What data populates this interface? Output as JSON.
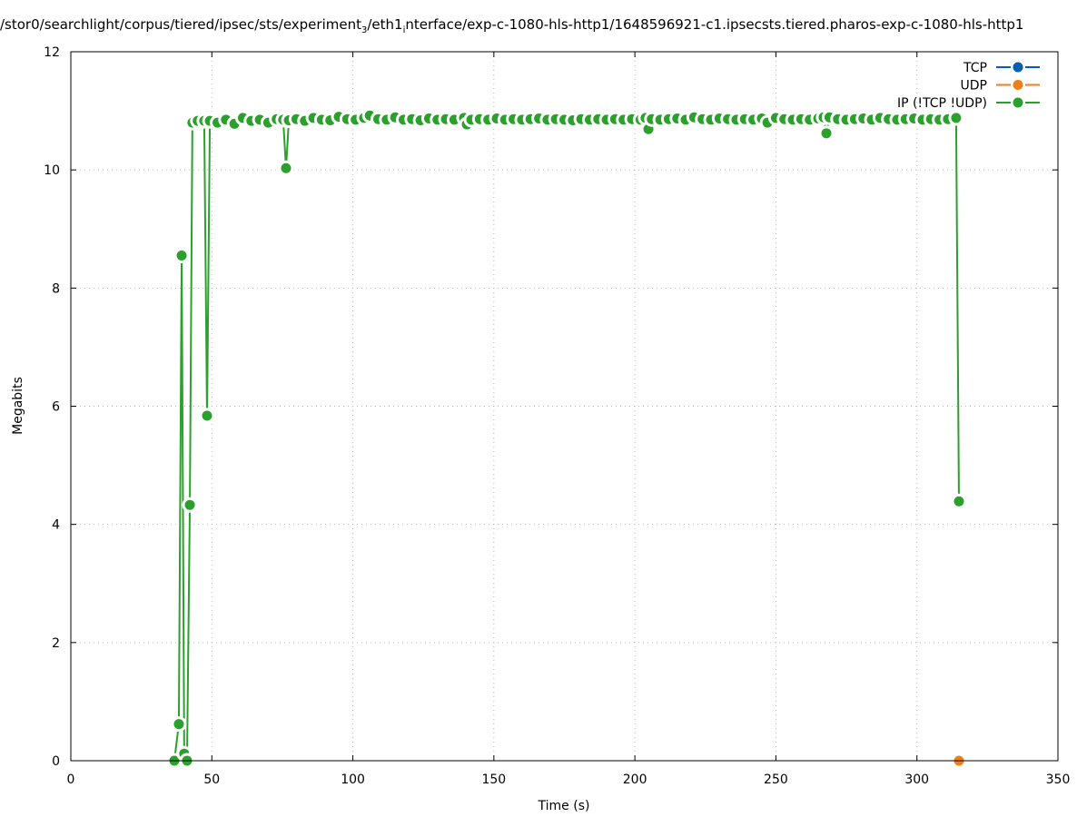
{
  "chart_data": {
    "type": "line",
    "title_parts": [
      "/stor0/searchlight/corpus/tiered/ipsec/sts/experiment",
      "3",
      "/eth1",
      "i",
      "nterface/exp-c-1080-hls-http1/1648596921-c1.ipsecsts.tiered.pharos-exp-c-1080-hls-http1"
    ],
    "xlabel": "Time (s)",
    "ylabel": "Megabits",
    "xlim": [
      0,
      350
    ],
    "ylim": [
      0,
      12
    ],
    "xticks": [
      0,
      50,
      100,
      150,
      200,
      250,
      300,
      350
    ],
    "yticks": [
      0,
      2,
      4,
      6,
      8,
      10,
      12
    ],
    "grid": true,
    "legend_position": "top-right",
    "series": [
      {
        "name": "TCP",
        "color": "#0060ad",
        "points": []
      },
      {
        "name": "UDP",
        "color": "#f07f16",
        "points": [
          [
            314.9,
            0
          ]
        ]
      },
      {
        "name": "IP (!TCP  !UDP)",
        "color": "#2ca02c",
        "points": [
          [
            36.7,
            0
          ],
          [
            38.3,
            0.62
          ],
          [
            39.3,
            8.55
          ],
          [
            40.2,
            0.12
          ],
          [
            41.2,
            0
          ],
          [
            42.2,
            4.33
          ],
          [
            43.1,
            10.8
          ],
          [
            45,
            10.83
          ],
          [
            47.3,
            10.83
          ],
          [
            48.3,
            5.84
          ],
          [
            49.3,
            10.83
          ],
          [
            52,
            10.8
          ],
          [
            55,
            10.85
          ],
          [
            58,
            10.78
          ],
          [
            61,
            10.88
          ],
          [
            64,
            10.83
          ],
          [
            67,
            10.85
          ],
          [
            70,
            10.8
          ],
          [
            73,
            10.86
          ],
          [
            75.3,
            10.85
          ],
          [
            76.3,
            10.03
          ],
          [
            77.3,
            10.84
          ],
          [
            80,
            10.86
          ],
          [
            83,
            10.83
          ],
          [
            86,
            10.88
          ],
          [
            89,
            10.85
          ],
          [
            92,
            10.84
          ],
          [
            95,
            10.9
          ],
          [
            98,
            10.86
          ],
          [
            101,
            10.85
          ],
          [
            104,
            10.88
          ],
          [
            106,
            10.92
          ],
          [
            109,
            10.86
          ],
          [
            112,
            10.85
          ],
          [
            115,
            10.89
          ],
          [
            118,
            10.85
          ],
          [
            121,
            10.86
          ],
          [
            124,
            10.84
          ],
          [
            127,
            10.87
          ],
          [
            130,
            10.85
          ],
          [
            133,
            10.86
          ],
          [
            136,
            10.85
          ],
          [
            139.4,
            10.88
          ],
          [
            140.4,
            10.77
          ],
          [
            142,
            10.85
          ],
          [
            145,
            10.86
          ],
          [
            148,
            10.85
          ],
          [
            151,
            10.87
          ],
          [
            154,
            10.85
          ],
          [
            157,
            10.86
          ],
          [
            160,
            10.85
          ],
          [
            163,
            10.86
          ],
          [
            166,
            10.87
          ],
          [
            169,
            10.85
          ],
          [
            172,
            10.86
          ],
          [
            175,
            10.85
          ],
          [
            178,
            10.84
          ],
          [
            181,
            10.86
          ],
          [
            184,
            10.85
          ],
          [
            187,
            10.86
          ],
          [
            190,
            10.85
          ],
          [
            193,
            10.86
          ],
          [
            196,
            10.85
          ],
          [
            199,
            10.86
          ],
          [
            202,
            10.85
          ],
          [
            203.8,
            10.88
          ],
          [
            204.8,
            10.69
          ],
          [
            206,
            10.86
          ],
          [
            209,
            10.85
          ],
          [
            212,
            10.86
          ],
          [
            215,
            10.87
          ],
          [
            218,
            10.85
          ],
          [
            221,
            10.89
          ],
          [
            224,
            10.86
          ],
          [
            227,
            10.85
          ],
          [
            230,
            10.87
          ],
          [
            233,
            10.86
          ],
          [
            236,
            10.85
          ],
          [
            239,
            10.86
          ],
          [
            242,
            10.85
          ],
          [
            245,
            10.87
          ],
          [
            247,
            10.8
          ],
          [
            250,
            10.88
          ],
          [
            253,
            10.86
          ],
          [
            256,
            10.85
          ],
          [
            259,
            10.86
          ],
          [
            262,
            10.85
          ],
          [
            265,
            10.87
          ],
          [
            266.9,
            10.89
          ],
          [
            267.9,
            10.62
          ],
          [
            269,
            10.89
          ],
          [
            272,
            10.86
          ],
          [
            275,
            10.85
          ],
          [
            278,
            10.86
          ],
          [
            281,
            10.87
          ],
          [
            284,
            10.85
          ],
          [
            287,
            10.88
          ],
          [
            290,
            10.86
          ],
          [
            293,
            10.85
          ],
          [
            296,
            10.86
          ],
          [
            299,
            10.87
          ],
          [
            302,
            10.85
          ],
          [
            305,
            10.86
          ],
          [
            308,
            10.85
          ],
          [
            311,
            10.86
          ],
          [
            313.9,
            10.88
          ],
          [
            314.9,
            4.39
          ]
        ]
      }
    ]
  }
}
